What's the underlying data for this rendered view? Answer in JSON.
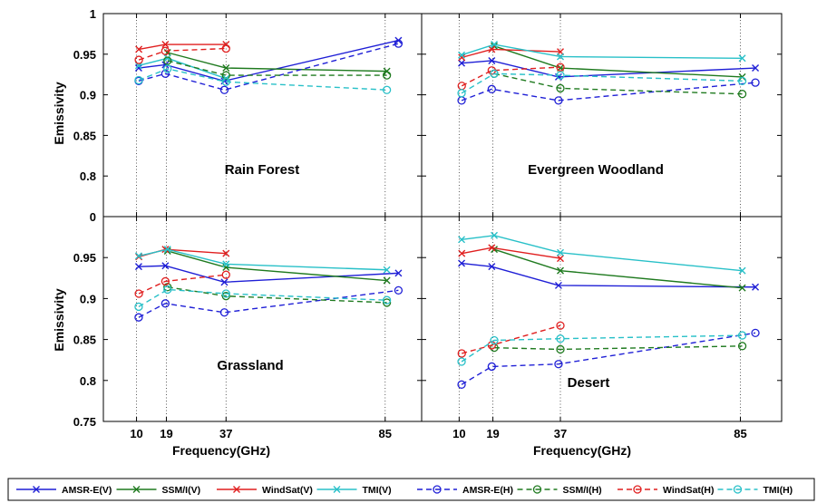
{
  "chart_data": {
    "type": "line",
    "xlabel": "Frequency(GHz)",
    "ylabel": "Emissivity",
    "x_ticks": [
      "10",
      "19",
      "37",
      "85"
    ],
    "grid": "dotted vertical lines at 10, 19, 37 and 85 GHz",
    "legend_position": "bottom",
    "legend": [
      {
        "name": "AMSR-E(V)",
        "color": "#1f1fd6",
        "dash": "solid",
        "marker": "x"
      },
      {
        "name": "SSM/I(V)",
        "color": "#1f7a1f",
        "dash": "solid",
        "marker": "x"
      },
      {
        "name": "WindSat(V)",
        "color": "#e01f1f",
        "dash": "solid",
        "marker": "x"
      },
      {
        "name": "TMI(V)",
        "color": "#28c0c8",
        "dash": "solid",
        "marker": "x"
      },
      {
        "name": "AMSR-E(H)",
        "color": "#1f1fd6",
        "dash": "dashed",
        "marker": "o"
      },
      {
        "name": "SSM/I(H)",
        "color": "#1f7a1f",
        "dash": "dashed",
        "marker": "o"
      },
      {
        "name": "WindSat(H)",
        "color": "#e01f1f",
        "dash": "dashed",
        "marker": "o"
      },
      {
        "name": "TMI(H)",
        "color": "#28c0c8",
        "dash": "dashed",
        "marker": "o"
      }
    ],
    "panels": [
      {
        "title": "Rain Forest",
        "y_ticks": [
          "1",
          "0.95",
          "0.9",
          "0.85",
          "0.8"
        ],
        "series": [
          {
            "name": "AMSR-E(V)",
            "x": [
              10.65,
              18.7,
              36.5,
              89.0
            ],
            "y": [
              0.933,
              0.937,
              0.917,
              0.967
            ]
          },
          {
            "name": "SSM/I(V)",
            "x": [
              19.35,
              37.0,
              85.5
            ],
            "y": [
              0.952,
              0.933,
              0.929
            ]
          },
          {
            "name": "WindSat(V)",
            "x": [
              10.7,
              18.7,
              37.0
            ],
            "y": [
              0.956,
              0.962,
              0.962
            ]
          },
          {
            "name": "TMI(V)",
            "x": [
              10.65,
              19.35,
              37.0
            ],
            "y": [
              0.936,
              0.945,
              0.92
            ]
          },
          {
            "name": "AMSR-E(H)",
            "x": [
              10.65,
              18.7,
              36.5,
              89.0
            ],
            "y": [
              0.917,
              0.926,
              0.906,
              0.963
            ]
          },
          {
            "name": "SSM/I(H)",
            "x": [
              19.35,
              37.0,
              85.5
            ],
            "y": [
              0.942,
              0.924,
              0.924
            ]
          },
          {
            "name": "WindSat(H)",
            "x": [
              10.7,
              18.7,
              37.0
            ],
            "y": [
              0.943,
              0.954,
              0.957
            ]
          },
          {
            "name": "TMI(H)",
            "x": [
              10.65,
              19.35,
              37.0,
              85.5
            ],
            "y": [
              0.918,
              0.932,
              0.916,
              0.906
            ]
          }
        ]
      },
      {
        "title": "Evergreen Woodland",
        "y_ticks": [],
        "series": [
          {
            "name": "AMSR-E(V)",
            "x": [
              10.65,
              18.7,
              36.5,
              89.0
            ],
            "y": [
              0.939,
              0.942,
              0.922,
              0.933
            ]
          },
          {
            "name": "SSM/I(V)",
            "x": [
              19.35,
              37.0,
              85.5
            ],
            "y": [
              0.96,
              0.933,
              0.922
            ]
          },
          {
            "name": "WindSat(V)",
            "x": [
              10.7,
              18.7,
              37.0
            ],
            "y": [
              0.946,
              0.956,
              0.953
            ]
          },
          {
            "name": "TMI(V)",
            "x": [
              10.65,
              19.35,
              37.0,
              85.5
            ],
            "y": [
              0.949,
              0.962,
              0.947,
              0.945
            ]
          },
          {
            "name": "AMSR-E(H)",
            "x": [
              10.65,
              18.7,
              36.5,
              89.0
            ],
            "y": [
              0.893,
              0.907,
              0.893,
              0.915
            ]
          },
          {
            "name": "SSM/I(H)",
            "x": [
              19.35,
              37.0,
              85.5
            ],
            "y": [
              0.926,
              0.908,
              0.901
            ]
          },
          {
            "name": "WindSat(H)",
            "x": [
              10.7,
              18.7,
              37.0
            ],
            "y": [
              0.911,
              0.93,
              0.934
            ]
          },
          {
            "name": "TMI(H)",
            "x": [
              10.65,
              19.35,
              37.0,
              85.5
            ],
            "y": [
              0.902,
              0.926,
              0.924,
              0.917
            ]
          }
        ]
      },
      {
        "title": "Grassland",
        "y_ticks": [
          "0",
          "0.95",
          "0.9",
          "0.85",
          "0.8",
          "0.75"
        ],
        "series": [
          {
            "name": "AMSR-E(V)",
            "x": [
              10.65,
              18.7,
              36.5,
              89.0
            ],
            "y": [
              0.939,
              0.94,
              0.92,
              0.931
            ]
          },
          {
            "name": "SSM/I(V)",
            "x": [
              19.35,
              37.0,
              85.5
            ],
            "y": [
              0.958,
              0.938,
              0.922
            ]
          },
          {
            "name": "WindSat(V)",
            "x": [
              10.7,
              18.7,
              37.0
            ],
            "y": [
              0.951,
              0.96,
              0.955
            ]
          },
          {
            "name": "TMI(V)",
            "x": [
              10.65,
              19.35,
              37.0,
              85.5
            ],
            "y": [
              0.952,
              0.96,
              0.942,
              0.935
            ]
          },
          {
            "name": "AMSR-E(H)",
            "x": [
              10.65,
              18.7,
              36.5,
              89.0
            ],
            "y": [
              0.877,
              0.894,
              0.883,
              0.91
            ]
          },
          {
            "name": "SSM/I(H)",
            "x": [
              19.35,
              37.0,
              85.5
            ],
            "y": [
              0.914,
              0.903,
              0.895
            ]
          },
          {
            "name": "WindSat(H)",
            "x": [
              10.7,
              18.7,
              37.0
            ],
            "y": [
              0.906,
              0.921,
              0.929
            ]
          },
          {
            "name": "TMI(H)",
            "x": [
              10.65,
              19.35,
              37.0,
              85.5
            ],
            "y": [
              0.89,
              0.911,
              0.906,
              0.898
            ]
          }
        ]
      },
      {
        "title": "Desert",
        "y_ticks": [],
        "series": [
          {
            "name": "AMSR-E(V)",
            "x": [
              10.65,
              18.7,
              36.5,
              89.0
            ],
            "y": [
              0.943,
              0.939,
              0.916,
              0.914
            ]
          },
          {
            "name": "SSM/I(V)",
            "x": [
              19.35,
              37.0,
              85.5
            ],
            "y": [
              0.96,
              0.934,
              0.913
            ]
          },
          {
            "name": "WindSat(V)",
            "x": [
              10.7,
              18.7,
              37.0
            ],
            "y": [
              0.955,
              0.962,
              0.949
            ]
          },
          {
            "name": "TMI(V)",
            "x": [
              10.65,
              19.35,
              37.0,
              85.5
            ],
            "y": [
              0.972,
              0.977,
              0.956,
              0.934
            ]
          },
          {
            "name": "AMSR-E(H)",
            "x": [
              10.65,
              18.7,
              36.5,
              89.0
            ],
            "y": [
              0.795,
              0.817,
              0.82,
              0.858
            ]
          },
          {
            "name": "SSM/I(H)",
            "x": [
              19.35,
              37.0,
              85.5
            ],
            "y": [
              0.84,
              0.838,
              0.842
            ]
          },
          {
            "name": "WindSat(H)",
            "x": [
              10.7,
              18.7,
              37.0
            ],
            "y": [
              0.833,
              0.843,
              0.867
            ]
          },
          {
            "name": "TMI(H)",
            "x": [
              10.65,
              19.35,
              37.0,
              85.5
            ],
            "y": [
              0.823,
              0.849,
              0.851,
              0.855
            ]
          }
        ]
      }
    ]
  }
}
